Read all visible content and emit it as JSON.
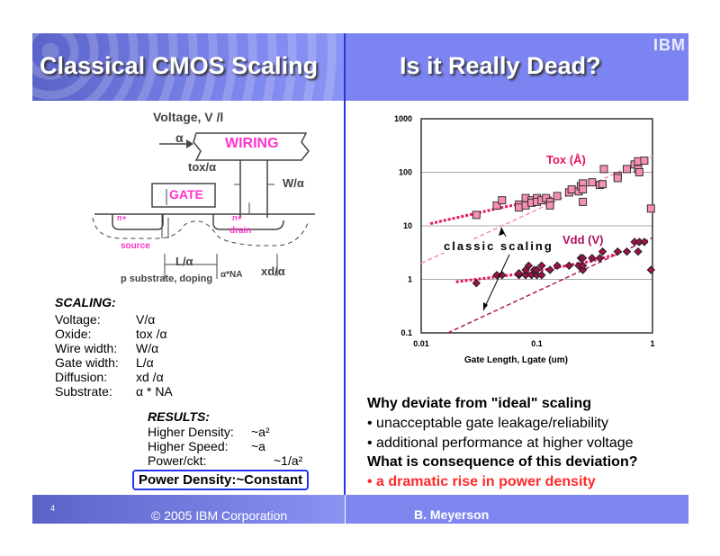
{
  "header": {
    "left_title": "Classical CMOS Scaling",
    "right_title": "Is it Really Dead?",
    "logo": "IBM"
  },
  "diagram": {
    "title": "Voltage, V /l",
    "alpha": "α",
    "wiring": "WIRING",
    "tox": "tox/α",
    "w": "W/α",
    "gate": "GATE",
    "n_left": "n+",
    "n_right": "n+",
    "drain": "drain",
    "source": "source",
    "l": "L/α",
    "substrate": "p substrate, doping",
    "doping": "α*NA",
    "xd": "xd/α"
  },
  "scaling": {
    "heading": "SCALING:",
    "rows": [
      {
        "label": "Voltage:",
        "value": "V/α"
      },
      {
        "label": "Oxide:",
        "value": "tox /α"
      },
      {
        "label": "Wire width:",
        "value": "W/α"
      },
      {
        "label": "Gate width:",
        "value": "L/α"
      },
      {
        "label": "Diffusion:",
        "value": "xd /α"
      },
      {
        "label": "Substrate:",
        "value": "α * NA"
      }
    ]
  },
  "results": {
    "heading": "RESULTS:",
    "rows": [
      {
        "label": "Higher Density:",
        "value": "~a²"
      },
      {
        "label": "Higher Speed:",
        "value": "~a"
      },
      {
        "label": "Power/ckt:",
        "value": "~1/a²"
      }
    ],
    "boxed": "Power Density:~Constant"
  },
  "bullets": {
    "q1": "Why deviate from \"ideal\" scaling",
    "b1": "• unacceptable gate leakage/reliability",
    "b2": "• additional performance at higher voltage",
    "q2": "What is consequence of this deviation?",
    "b3": "• a dramatic rise in power density"
  },
  "footer": {
    "page": "4",
    "copyright": "© 2005 IBM Corporation",
    "author": "B. Meyerson"
  },
  "colors": {
    "accent": "#ff2a2a",
    "tox": "#f78fb3",
    "vdd": "#b0105a",
    "header": "#7b84f0"
  },
  "chart_data": {
    "type": "scatter",
    "xscale": "log",
    "yscale": "log",
    "xlim": [
      0.01,
      1
    ],
    "ylim": [
      0.1,
      1000
    ],
    "xlabel": "Gate Length, Lgate (um)",
    "ylabel": "",
    "xticks": [
      "0.01",
      "0.1",
      "1"
    ],
    "yticks": [
      "0.1",
      "1",
      "10",
      "100",
      "1000"
    ],
    "grid": "horizontal",
    "annotation": "classic scaling",
    "series": [
      {
        "name": "Tox (Å)",
        "marker": "square",
        "points": [
          [
            0.03,
            16
          ],
          [
            0.045,
            24
          ],
          [
            0.05,
            30
          ],
          [
            0.07,
            25
          ],
          [
            0.07,
            22
          ],
          [
            0.08,
            33
          ],
          [
            0.08,
            24
          ],
          [
            0.09,
            30
          ],
          [
            0.09,
            27
          ],
          [
            0.1,
            33
          ],
          [
            0.1,
            28
          ],
          [
            0.11,
            30
          ],
          [
            0.12,
            33
          ],
          [
            0.13,
            28
          ],
          [
            0.13,
            24
          ],
          [
            0.15,
            36
          ],
          [
            0.19,
            42
          ],
          [
            0.2,
            48
          ],
          [
            0.23,
            44
          ],
          [
            0.24,
            55
          ],
          [
            0.25,
            62
          ],
          [
            0.25,
            28
          ],
          [
            0.25,
            48
          ],
          [
            0.3,
            65
          ],
          [
            0.35,
            58
          ],
          [
            0.37,
            60
          ],
          [
            0.38,
            115
          ],
          [
            0.5,
            85
          ],
          [
            0.5,
            78
          ],
          [
            0.6,
            115
          ],
          [
            0.7,
            140
          ],
          [
            0.75,
            160
          ],
          [
            0.75,
            115
          ],
          [
            0.77,
            100
          ],
          [
            0.85,
            165
          ],
          [
            0.97,
            21
          ]
        ]
      },
      {
        "name": "Vdd (V)",
        "marker": "diamond",
        "points": [
          [
            0.03,
            0.85
          ],
          [
            0.045,
            1.2
          ],
          [
            0.05,
            1.2
          ],
          [
            0.07,
            1.2
          ],
          [
            0.07,
            1.3
          ],
          [
            0.08,
            1.2
          ],
          [
            0.08,
            1.5
          ],
          [
            0.085,
            1.8
          ],
          [
            0.09,
            1.2
          ],
          [
            0.095,
            1.5
          ],
          [
            0.1,
            1.2
          ],
          [
            0.1,
            1.5
          ],
          [
            0.11,
            1.2
          ],
          [
            0.11,
            1.8
          ],
          [
            0.13,
            1.5
          ],
          [
            0.15,
            1.8
          ],
          [
            0.19,
            1.8
          ],
          [
            0.23,
            1.8
          ],
          [
            0.24,
            2.5
          ],
          [
            0.25,
            1.5
          ],
          [
            0.25,
            1.8
          ],
          [
            0.25,
            2.5
          ],
          [
            0.3,
            2.5
          ],
          [
            0.35,
            2.5
          ],
          [
            0.37,
            3.3
          ],
          [
            0.5,
            3.3
          ],
          [
            0.6,
            3.3
          ],
          [
            0.7,
            5
          ],
          [
            0.75,
            3.3
          ],
          [
            0.77,
            5
          ],
          [
            0.85,
            5
          ],
          [
            0.97,
            1.5
          ]
        ]
      }
    ],
    "trend_lines": [
      {
        "series": "Tox (Å)",
        "kind": "classic scaling",
        "points": [
          [
            0.01,
            2
          ],
          [
            1,
            200
          ]
        ]
      },
      {
        "series": "Tox (Å)",
        "kind": "actual",
        "points": [
          [
            0.012,
            11
          ],
          [
            0.05,
            22
          ],
          [
            0.15,
            35
          ]
        ]
      },
      {
        "series": "Vdd (V)",
        "kind": "classic scaling",
        "points": [
          [
            0.017,
            0.1
          ],
          [
            1,
            6
          ]
        ]
      },
      {
        "series": "Vdd (V)",
        "kind": "actual",
        "points": [
          [
            0.02,
            0.9
          ],
          [
            0.08,
            1.3
          ],
          [
            0.3,
            2.2
          ],
          [
            0.5,
            3
          ]
        ]
      }
    ]
  }
}
